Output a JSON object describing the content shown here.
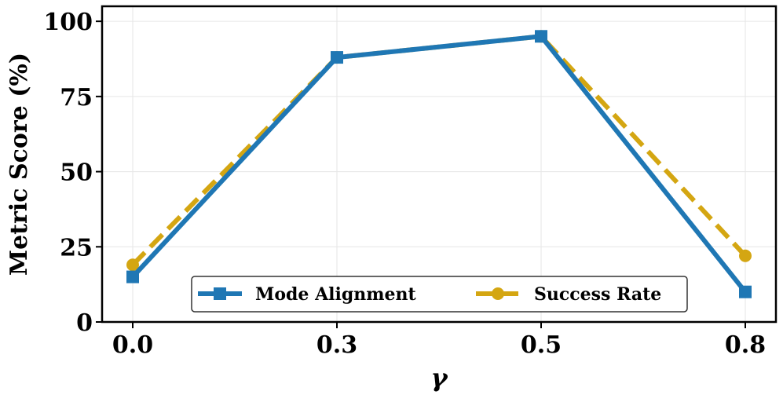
{
  "chart_data": {
    "type": "line",
    "categories": [
      "0.0",
      "0.3",
      "0.5",
      "0.8"
    ],
    "xlabel": "γ",
    "ylabel": "Metric Score (%)",
    "ylim": [
      0,
      105
    ],
    "yticks": [
      0,
      25,
      50,
      75,
      100
    ],
    "grid": true,
    "legend_position": "bottom-center",
    "series": [
      {
        "name": "Mode Alignment",
        "values": [
          15,
          88,
          95,
          10
        ],
        "color": "#1f77b4",
        "marker": "square",
        "line_style": "solid"
      },
      {
        "name": "Success Rate",
        "values": [
          19,
          88,
          95,
          22
        ],
        "color": "#d4a612",
        "marker": "circle",
        "line_style": "dashed"
      }
    ]
  }
}
